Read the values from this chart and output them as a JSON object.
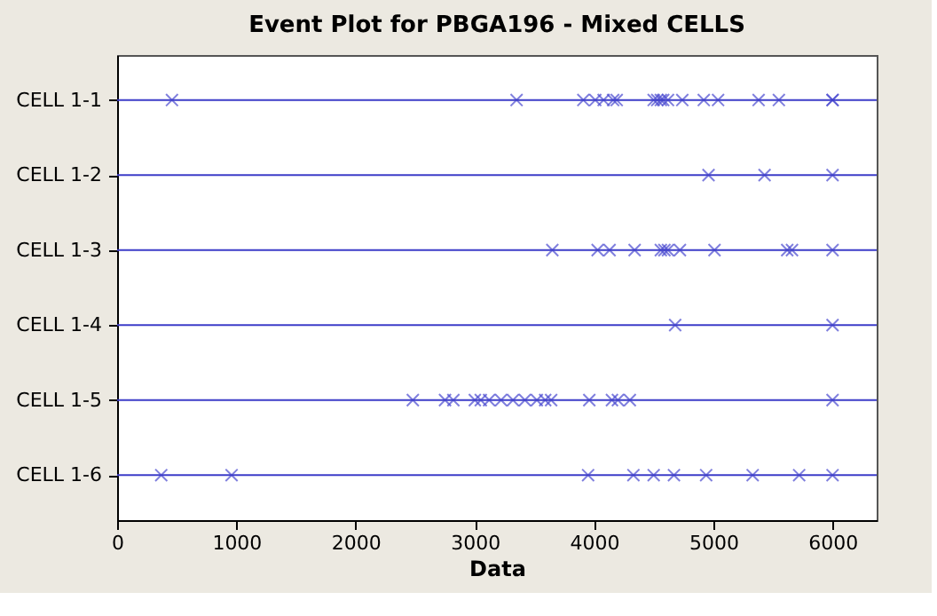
{
  "chart_data": {
    "type": "scatter",
    "orientation": "horizontal",
    "title": "Event Plot for PBGA196 - Mixed CELLS",
    "xlabel": "Data",
    "categories": [
      "CELL 1-1",
      "CELL 1-2",
      "CELL 1-3",
      "CELL 1-4",
      "CELL 1-5",
      "CELL 1-6"
    ],
    "xlim": [
      0,
      6370
    ],
    "xticks": [
      0,
      1000,
      2000,
      3000,
      4000,
      5000,
      6000
    ],
    "grid": false,
    "marker": "cross",
    "series": [
      {
        "color": "#4a4ad0",
        "x": [
          "CELL 1-1",
          "CELL 1-1",
          "CELL 1-1",
          "CELL 1-1",
          "CELL 1-1",
          "CELL 1-1",
          "CELL 1-1",
          "CELL 1-1",
          "CELL 1-1",
          "CELL 1-1",
          "CELL 1-1",
          "CELL 1-1",
          "CELL 1-1",
          "CELL 1-1",
          "CELL 1-1",
          "CELL 1-1",
          "CELL 1-1",
          "CELL 1-1",
          "CELL 1-1",
          "CELL 1-2",
          "CELL 1-2",
          "CELL 1-2",
          "CELL 1-3",
          "CELL 1-3",
          "CELL 1-3",
          "CELL 1-3",
          "CELL 1-3",
          "CELL 1-3",
          "CELL 1-3",
          "CELL 1-3",
          "CELL 1-3",
          "CELL 1-3",
          "CELL 1-3",
          "CELL 1-3",
          "CELL 1-4",
          "CELL 1-4",
          "CELL 1-5",
          "CELL 1-5",
          "CELL 1-5",
          "CELL 1-5",
          "CELL 1-5",
          "CELL 1-5",
          "CELL 1-5",
          "CELL 1-5",
          "CELL 1-5",
          "CELL 1-5",
          "CELL 1-5",
          "CELL 1-5",
          "CELL 1-5",
          "CELL 1-5",
          "CELL 1-5",
          "CELL 1-5",
          "CELL 1-5",
          "CELL 1-6",
          "CELL 1-6",
          "CELL 1-6",
          "CELL 1-6",
          "CELL 1-6",
          "CELL 1-6",
          "CELL 1-6",
          "CELL 1-6",
          "CELL 1-6",
          "CELL 1-6"
        ],
        "values": [
          460,
          3350,
          3910,
          4010,
          4080,
          4160,
          4190,
          4500,
          4530,
          4560,
          4580,
          4620,
          4740,
          4920,
          5040,
          5380,
          5550,
          6000,
          6000,
          4960,
          5430,
          6000,
          3650,
          4030,
          4130,
          4340,
          4560,
          4590,
          4620,
          4720,
          5010,
          5620,
          5660,
          6000,
          4680,
          6000,
          2480,
          2750,
          2820,
          3000,
          3050,
          3120,
          3220,
          3320,
          3420,
          3520,
          3590,
          3640,
          3960,
          4150,
          4200,
          4300,
          6000,
          370,
          960,
          3950,
          4330,
          4500,
          4670,
          4940,
          5330,
          5720,
          6000
        ]
      }
    ],
    "ref_lines": [
      {
        "axis": "y",
        "value": "CELL 1-1",
        "color": "#3c3cc8"
      },
      {
        "axis": "y",
        "value": "CELL 1-2",
        "color": "#3c3cc8"
      },
      {
        "axis": "y",
        "value": "CELL 1-3",
        "color": "#3c3cc8"
      },
      {
        "axis": "y",
        "value": "CELL 1-4",
        "color": "#3c3cc8"
      },
      {
        "axis": "y",
        "value": "CELL 1-5",
        "color": "#3c3cc8"
      },
      {
        "axis": "y",
        "value": "CELL 1-6",
        "color": "#3c3cc8"
      }
    ]
  }
}
